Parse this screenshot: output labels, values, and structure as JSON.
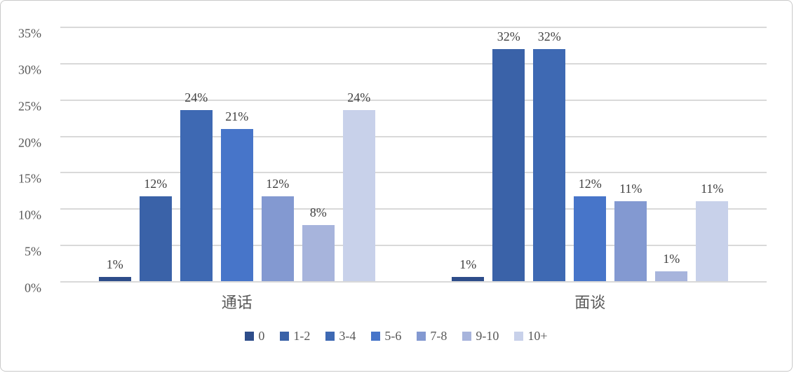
{
  "chart_data": {
    "type": "bar",
    "title": "",
    "xlabel": "",
    "ylabel": "",
    "categories": [
      "通话",
      "面谈"
    ],
    "series": [
      {
        "name": "0",
        "color": "#2E4D8A",
        "values": [
          0.7,
          0.7
        ],
        "labels": [
          "1%",
          "1%"
        ]
      },
      {
        "name": "1-2",
        "color": "#3A62A8",
        "values": [
          11.8,
          32.0
        ],
        "labels": [
          "12%",
          "32%"
        ]
      },
      {
        "name": "3-4",
        "color": "#3E69B3",
        "values": [
          23.6,
          32.0
        ],
        "labels": [
          "24%",
          "32%"
        ]
      },
      {
        "name": "5-6",
        "color": "#4775C9",
        "values": [
          21.0,
          11.8
        ],
        "labels": [
          "21%",
          "12%"
        ]
      },
      {
        "name": "7-8",
        "color": "#8399D1",
        "values": [
          11.8,
          11.1
        ],
        "labels": [
          "12%",
          "11%"
        ]
      },
      {
        "name": "9-10",
        "color": "#A7B4DC",
        "values": [
          7.8,
          1.4
        ],
        "labels": [
          "8%",
          "1%"
        ]
      },
      {
        "name": "10+",
        "color": "#C8D1EA",
        "values": [
          23.6,
          11.1
        ],
        "labels": [
          "24%",
          "11%"
        ]
      }
    ],
    "y_ticks": [
      "0%",
      "5%",
      "10%",
      "15%",
      "20%",
      "25%",
      "30%",
      "35%"
    ],
    "ylim": [
      0,
      35
    ],
    "grid": true,
    "legend_position": "bottom",
    "colors": {
      "gridline": "#d9d9d9",
      "tick_text": "#595959",
      "data_label_text": "#404040",
      "frame_border": "#c9c9c9"
    }
  }
}
